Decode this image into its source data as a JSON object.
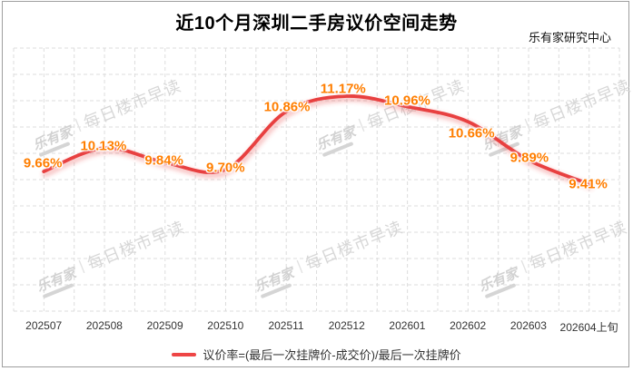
{
  "header": {
    "title": "近10个月深圳二手房议价空间走势",
    "source": "乐有家研究中心"
  },
  "chart_data": {
    "type": "line",
    "title": "近10个月深圳二手房议价空间走势",
    "categories": [
      "202507",
      "202508",
      "202509",
      "202510",
      "202511",
      "202512",
      "202601",
      "202602",
      "202603",
      "202604上旬"
    ],
    "series": [
      {
        "name": "议价率",
        "values": [
          9.66,
          10.13,
          9.84,
          9.7,
          10.86,
          11.17,
          10.96,
          10.66,
          9.89,
          9.41
        ]
      }
    ],
    "point_labels": [
      "9.66%",
      "10.13%",
      "9.84%",
      "9.70%",
      "10.86%",
      "11.17%",
      "10.96%",
      "10.66%",
      "9.89%",
      "9.41%"
    ],
    "unit": "%",
    "xlabel": "",
    "ylabel": "",
    "grid": true,
    "legend_position": "bottom",
    "line_color": "#e84040",
    "label_color": "#ff7e00"
  },
  "legend": {
    "label": "议价率=(最后一次挂牌价-成交价)/最后一次挂牌价"
  },
  "watermark": {
    "brand": "乐有家",
    "divider": "|",
    "text": "每日楼市早读"
  }
}
